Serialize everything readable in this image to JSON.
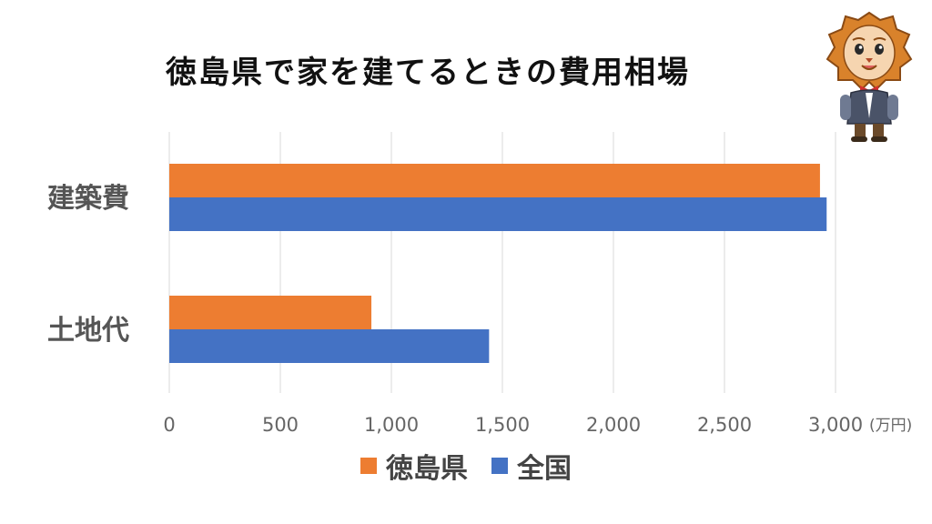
{
  "chart_data": {
    "type": "bar",
    "orientation": "horizontal",
    "title": "徳島県で家を建てるときの費用相場",
    "categories": [
      "建築費",
      "土地代"
    ],
    "series": [
      {
        "name": "徳島県",
        "values": [
          2930,
          910
        ],
        "color": "#ED7D31"
      },
      {
        "name": "全国",
        "values": [
          2960,
          1440
        ],
        "color": "#4472C4"
      }
    ],
    "x_ticks": [
      "0",
      "500",
      "1,000",
      "1,500",
      "2,000",
      "2,500",
      "3,000"
    ],
    "xlim": [
      0,
      3000
    ],
    "xlabel": "(万円)",
    "ylabel": "",
    "grid": true,
    "legend_position": "bottom"
  },
  "mascot": {
    "icon": "lion-mascot-icon"
  }
}
